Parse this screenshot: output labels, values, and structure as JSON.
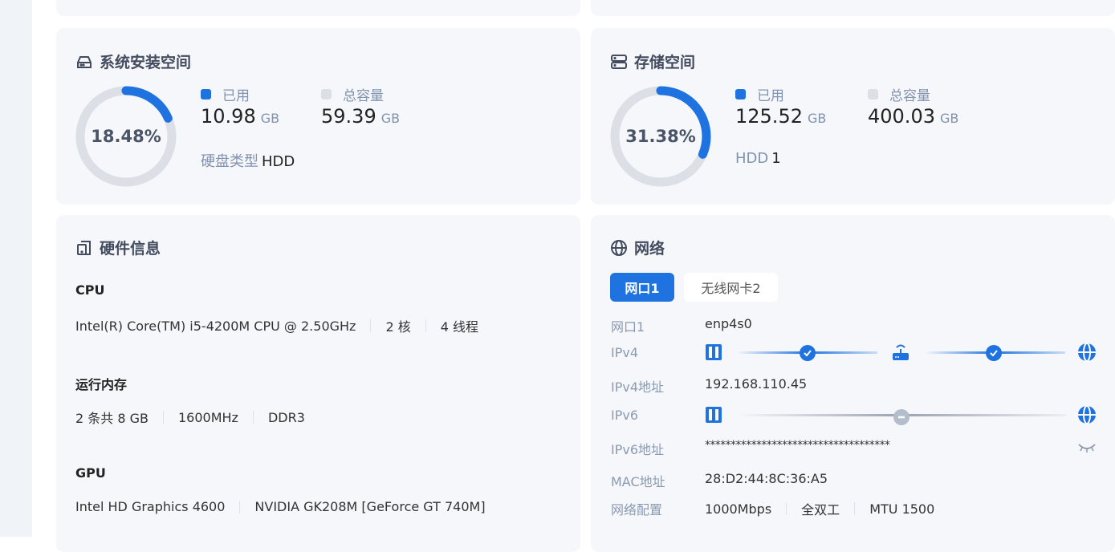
{
  "colors": {
    "accent": "#1f73e0",
    "track": "#dcdfe6"
  },
  "install": {
    "title": "系统安装空间",
    "icon": "hard-drive-icon",
    "percent": 18.48,
    "percent_label": "18.48%",
    "used_label": "已用",
    "used": "10.98",
    "used_unit": "GB",
    "total_label": "总容量",
    "total": "59.39",
    "total_unit": "GB",
    "disk_type_label": "硬盘类型",
    "disk_type": "HDD"
  },
  "storage": {
    "title": "存储空间",
    "icon": "server-icon",
    "percent": 31.38,
    "percent_label": "31.38%",
    "used_label": "已用",
    "used": "125.52",
    "used_unit": "GB",
    "total_label": "总容量",
    "total": "400.03",
    "total_unit": "GB",
    "hdd_label": "HDD",
    "hdd_count": "1"
  },
  "hardware": {
    "title": "硬件信息",
    "icon": "device-icon",
    "cpu": {
      "label": "CPU",
      "model": "Intel(R) Core(TM) i5-4200M CPU @ 2.50GHz",
      "cores": "2 核",
      "threads": "4 线程"
    },
    "memory": {
      "label": "运行内存",
      "size": "2 条共 8 GB",
      "freq": "1600MHz",
      "type": "DDR3"
    },
    "gpu": {
      "label": "GPU",
      "gpus": [
        "Intel HD Graphics 4600",
        "NVIDIA GK208M [GeForce GT 740M]"
      ]
    }
  },
  "network": {
    "title": "网络",
    "icon": "globe-icon",
    "tabs": [
      {
        "label": "网口1",
        "active": true
      },
      {
        "label": "无线网卡2",
        "active": false
      }
    ],
    "port_label": "网口1",
    "port": "enp4s0",
    "ipv4_label": "IPv4",
    "ipv4_status": "connected",
    "ipv4_addr_label": "IPv4地址",
    "ipv4_addr": "192.168.110.45",
    "ipv6_label": "IPv6",
    "ipv6_status": "disconnected",
    "ipv6_addr_label": "IPv6地址",
    "ipv6_addr": "************************************",
    "mac_label": "MAC地址",
    "mac": "28:D2:44:8C:36:A5",
    "config_label": "网络配置",
    "speed": "1000Mbps",
    "duplex": "全双工",
    "mtu": "MTU 1500"
  }
}
